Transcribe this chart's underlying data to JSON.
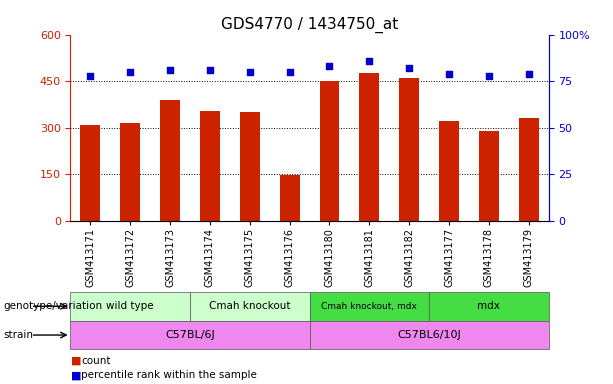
{
  "title": "GDS4770 / 1434750_at",
  "samples": [
    "GSM413171",
    "GSM413172",
    "GSM413173",
    "GSM413174",
    "GSM413175",
    "GSM413176",
    "GSM413180",
    "GSM413181",
    "GSM413182",
    "GSM413177",
    "GSM413178",
    "GSM413179"
  ],
  "counts": [
    310,
    315,
    390,
    355,
    350,
    148,
    450,
    475,
    460,
    320,
    290,
    330
  ],
  "percentile_ranks": [
    78,
    80,
    81,
    81,
    80,
    80,
    83,
    86,
    82,
    79,
    78,
    79
  ],
  "bar_color": "#cc2200",
  "dot_color": "#0000cc",
  "left_yaxis": {
    "min": 0,
    "max": 600,
    "ticks": [
      0,
      150,
      300,
      450,
      600
    ],
    "color": "#cc2200"
  },
  "right_yaxis": {
    "min": 0,
    "max": 100,
    "ticks": [
      0,
      25,
      50,
      75,
      100
    ],
    "color": "#0000bb",
    "tick_labels": [
      "0",
      "25",
      "50",
      "75",
      "100%"
    ]
  },
  "grid_values": [
    150,
    300,
    450
  ],
  "genotype_groups": [
    {
      "label": "wild type",
      "start": 0,
      "end": 2,
      "color": "#ccffcc"
    },
    {
      "label": "Cmah knockout",
      "start": 3,
      "end": 5,
      "color": "#ccffcc"
    },
    {
      "label": "Cmah knockout, mdx",
      "start": 6,
      "end": 8,
      "color": "#44dd44"
    },
    {
      "label": "mdx",
      "start": 9,
      "end": 11,
      "color": "#44dd44"
    }
  ],
  "strain_groups": [
    {
      "label": "C57BL/6J",
      "start": 0,
      "end": 5,
      "color": "#ee88ee"
    },
    {
      "label": "C57BL6/10J",
      "start": 6,
      "end": 11,
      "color": "#ee88ee"
    }
  ],
  "legend_items": [
    {
      "label": "count",
      "color": "#cc2200"
    },
    {
      "label": "percentile rank within the sample",
      "color": "#0000cc"
    }
  ],
  "row_label_genotype": "genotype/variation",
  "row_label_strain": "strain",
  "bar_width": 0.5
}
